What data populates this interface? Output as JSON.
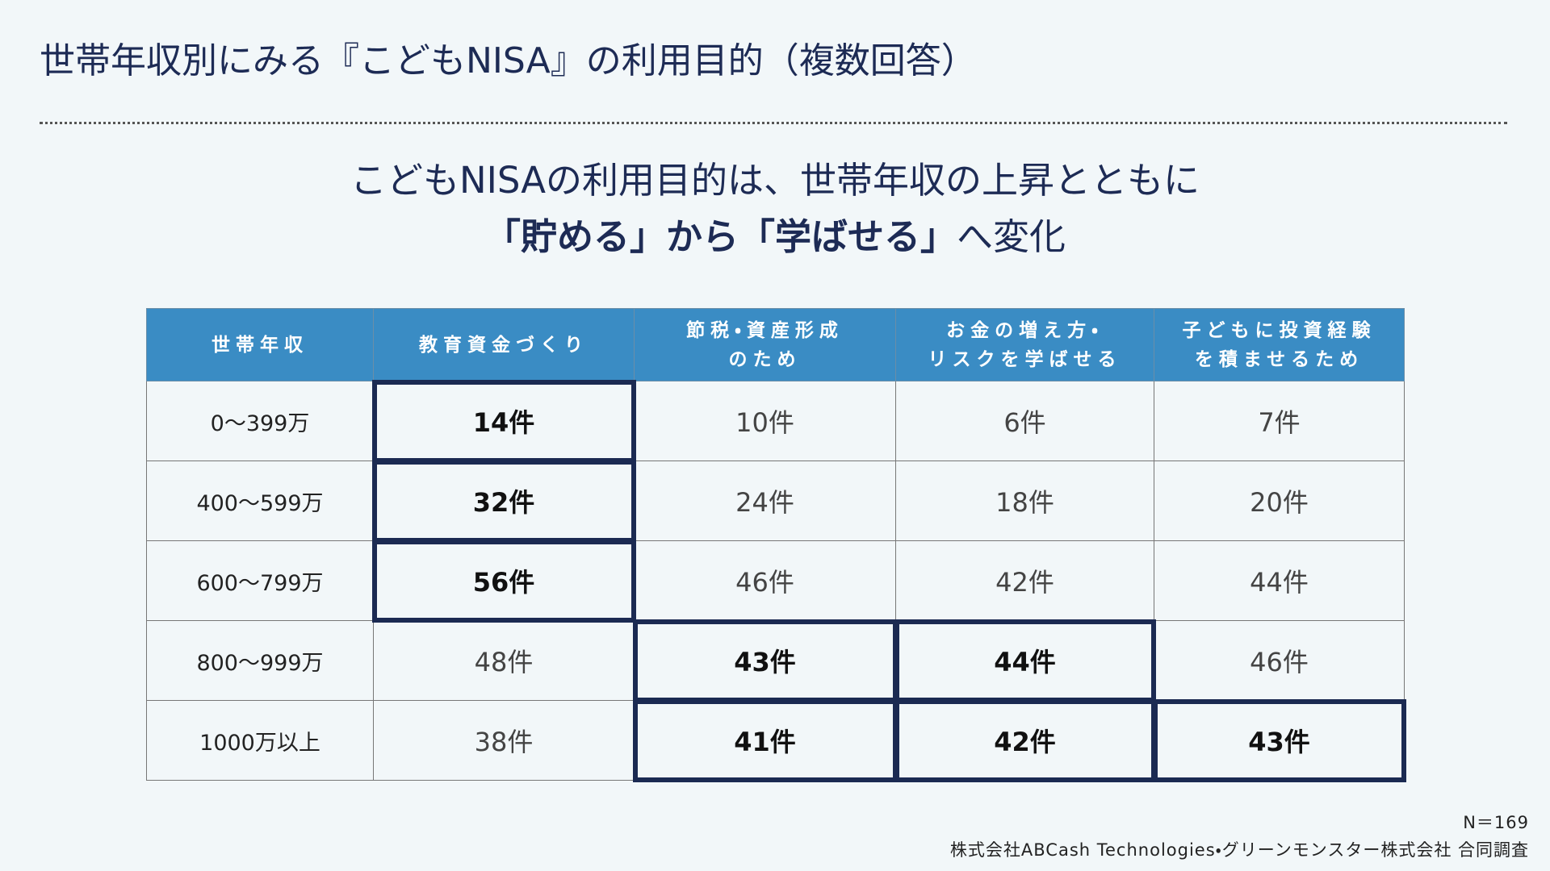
{
  "title": "世帯年収別にみる『こどもNISA』の利用目的（複数回答）",
  "headline": {
    "line1": "こどもNISAの利用目的は、世帯年収の上昇とともに",
    "line2_bold": "「貯める」から「学ばせる」",
    "line2_rest": "へ変化"
  },
  "table": {
    "header": [
      "世帯年収",
      "教育資金づくり",
      "節税・資産形成\nのため",
      "お金の増え方・\nリスクを学ばせる",
      "子どもに投資経験\nを積ませるため"
    ],
    "rows": [
      [
        "0〜399万",
        "14件",
        "10件",
        "6件",
        "7件"
      ],
      [
        "400〜599万",
        "32件",
        "24件",
        "18件",
        "20件"
      ],
      [
        "600〜799万",
        "56件",
        "46件",
        "42件",
        "44件"
      ],
      [
        "800〜999万",
        "48件",
        "43件",
        "44件",
        "46件"
      ],
      [
        "1000万以上",
        "38件",
        "41件",
        "42件",
        "43件"
      ]
    ]
  },
  "footnote": {
    "n": "N＝169",
    "source": "株式会社ABCash Technologies・グリーンモンスター株式会社 合同調査"
  }
}
